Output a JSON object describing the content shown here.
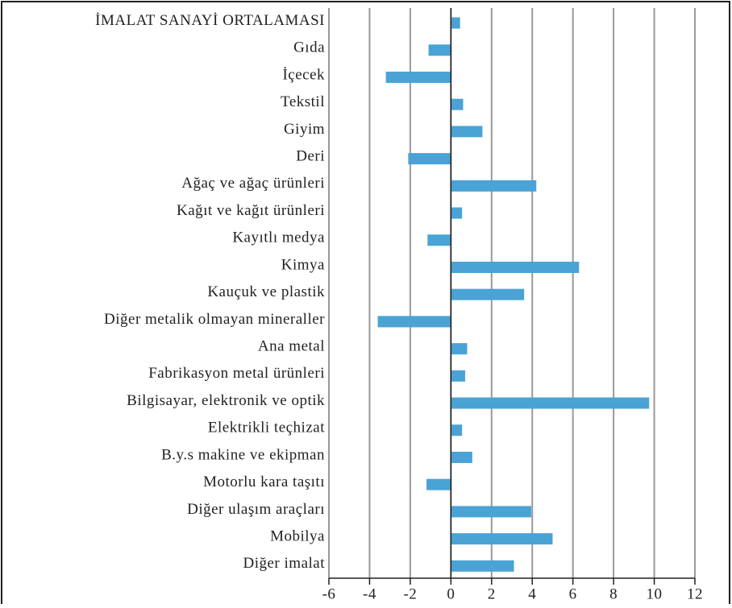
{
  "chart_data": {
    "type": "barh",
    "categories": [
      "İMALAT SANAYİ ORTALAMASI",
      "Gıda",
      "İçecek",
      "Tekstil",
      "Giyim",
      "Deri",
      "Ağaç ve ağaç ürünleri",
      "Kağıt ve kağıt ürünleri",
      "Kayıtlı medya",
      "Kimya",
      "Kauçuk ve plastik",
      "Diğer metalik olmayan mineraller",
      "Ana metal",
      "Fabrikasyon metal ürünleri",
      "Bilgisayar, elektronik ve optik",
      "Elektrikli teçhizat",
      "B.y.s makine ve ekipman",
      "Motorlu kara taşıtı",
      "Diğer ulaşım araçları",
      "Mobilya",
      "Diğer imalat"
    ],
    "values": [
      0.45,
      -1.1,
      -3.2,
      0.6,
      1.55,
      -2.1,
      4.2,
      0.55,
      -1.15,
      6.3,
      3.6,
      -3.6,
      0.8,
      0.7,
      9.75,
      0.55,
      1.05,
      -1.2,
      3.95,
      5.0,
      3.1
    ],
    "color": "#4aa3d4",
    "xlim": [
      -6,
      12
    ],
    "xticks": [
      -6,
      -4,
      -2,
      0,
      2,
      4,
      6,
      8,
      10,
      12
    ],
    "grid": true
  }
}
